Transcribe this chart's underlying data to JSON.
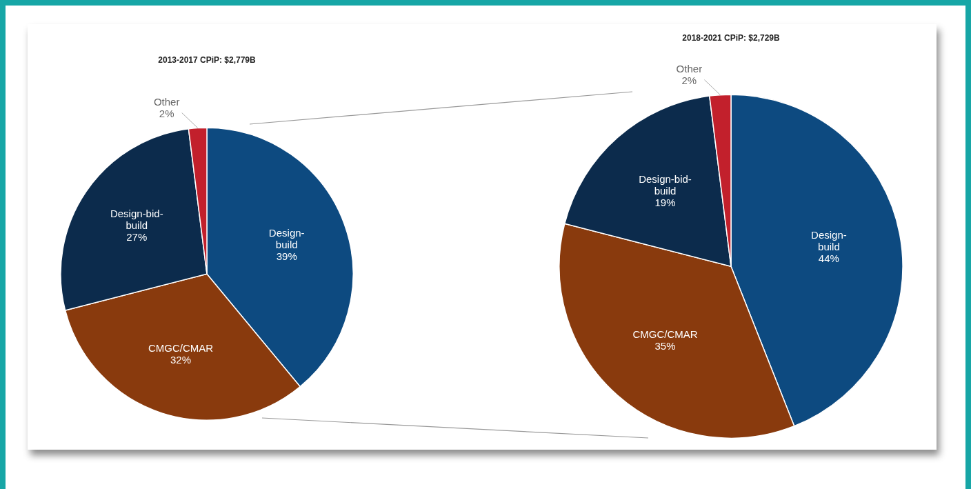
{
  "chart_data": [
    {
      "type": "pie",
      "title": "2013-2017 CPiP: $2,779B",
      "categories": [
        "Design-build",
        "CMGC/CMAR",
        "Design-bid-build",
        "Other"
      ],
      "values": [
        39,
        32,
        27,
        2
      ],
      "colors": [
        "#0d4a80",
        "#893a0d",
        "#0c2b4c",
        "#c2202c"
      ],
      "value_labels": [
        "39%",
        "32%",
        "27%",
        "2%"
      ],
      "legend": false
    },
    {
      "type": "pie",
      "title": "2018-2021 CPiP: $2,729B",
      "categories": [
        "Design-build",
        "CMGC/CMAR",
        "Design-bid-build",
        "Other"
      ],
      "values": [
        44,
        35,
        19,
        2
      ],
      "colors": [
        "#0d4a80",
        "#893a0d",
        "#0c2b4c",
        "#c2202c"
      ],
      "value_labels": [
        "44%",
        "35%",
        "19%",
        "2%"
      ],
      "legend": false
    }
  ]
}
